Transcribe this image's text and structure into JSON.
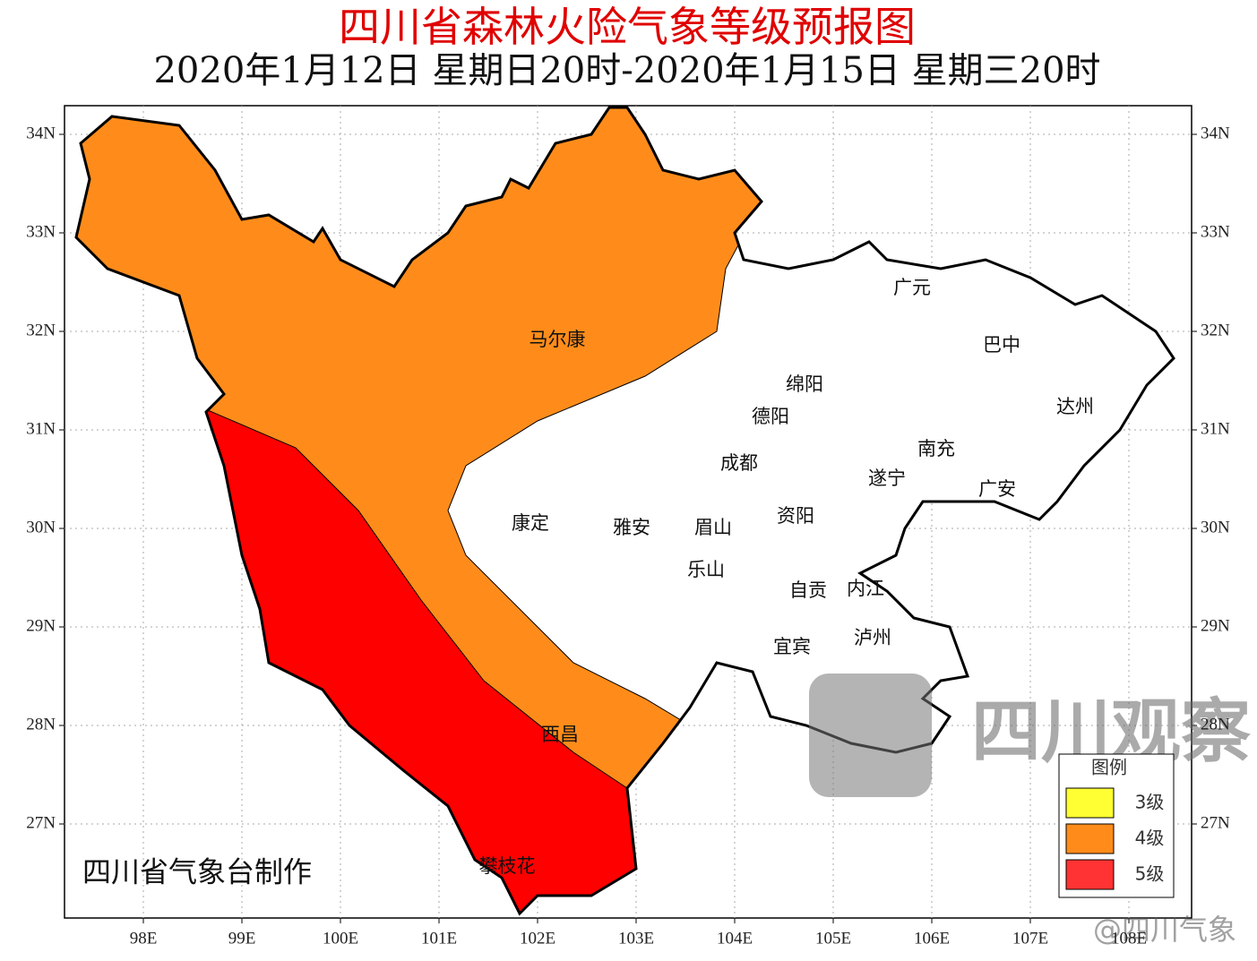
{
  "header": {
    "title": "四川省森林火险气象等级预报图",
    "subtitle": "2020年1月12日 星期日20时-2020年1月15日 星期三20时"
  },
  "map": {
    "lon_ticks": [
      {
        "value": 98,
        "label": "98E"
      },
      {
        "value": 99,
        "label": "99E"
      },
      {
        "value": 100,
        "label": "100E"
      },
      {
        "value": 101,
        "label": "101E"
      },
      {
        "value": 102,
        "label": "102E"
      },
      {
        "value": 103,
        "label": "103E"
      },
      {
        "value": 104,
        "label": "104E"
      },
      {
        "value": 105,
        "label": "105E"
      },
      {
        "value": 106,
        "label": "106E"
      },
      {
        "value": 107,
        "label": "107E"
      },
      {
        "value": 108,
        "label": "108E"
      }
    ],
    "lat_ticks": [
      {
        "value": 34,
        "label": "34N"
      },
      {
        "value": 33,
        "label": "33N"
      },
      {
        "value": 32,
        "label": "32N"
      },
      {
        "value": 31,
        "label": "31N"
      },
      {
        "value": 30,
        "label": "30N"
      },
      {
        "value": 29,
        "label": "29N"
      },
      {
        "value": 28,
        "label": "28N"
      },
      {
        "value": 27,
        "label": "27N"
      }
    ],
    "cities": [
      "广元",
      "巴中",
      "马尔康",
      "绵阳",
      "德阳",
      "达州",
      "南充",
      "成都",
      "遂宁",
      "广安",
      "康定",
      "雅安",
      "眉山",
      "资阳",
      "乐山",
      "自贡",
      "内江",
      "泸州",
      "宜宾",
      "西昌",
      "攀枝花"
    ],
    "credit": "四川省气象台制作"
  },
  "legend": {
    "title": "图例",
    "items": [
      {
        "label": "3级",
        "color": "#ffff33"
      },
      {
        "label": "4级",
        "color": "#ff8c1a"
      },
      {
        "label": "5级",
        "color": "#ff3333"
      }
    ]
  },
  "watermark": {
    "logo": "四川观察",
    "account": "@四川气象"
  }
}
